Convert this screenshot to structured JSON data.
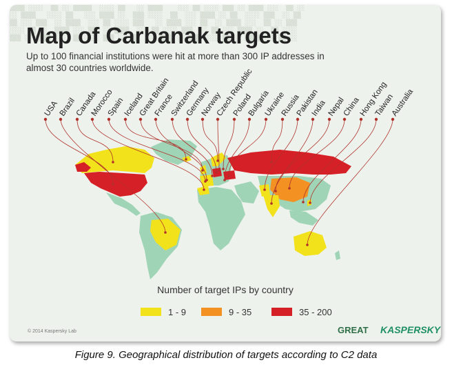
{
  "title": "Map of Carbanak targets",
  "subtitle": "Up to 100 financial institutions were hit at more than 300 IP addresses in almost 30 countries worldwide.",
  "countries": [
    {
      "name": "USA",
      "tier": "35 - 200"
    },
    {
      "name": "Brazil",
      "tier": "1 - 9"
    },
    {
      "name": "Canada",
      "tier": "1 - 9"
    },
    {
      "name": "Morocco",
      "tier": "1 - 9"
    },
    {
      "name": "Spain",
      "tier": "1 - 9"
    },
    {
      "name": "Iceland",
      "tier": "1 - 9"
    },
    {
      "name": "Great Britain",
      "tier": "1 - 9"
    },
    {
      "name": "France",
      "tier": "1 - 9"
    },
    {
      "name": "Switzerland",
      "tier": "1 - 9"
    },
    {
      "name": "Germany",
      "tier": "35 - 200"
    },
    {
      "name": "Norway",
      "tier": "1 - 9"
    },
    {
      "name": "Czech Republic",
      "tier": "1 - 9"
    },
    {
      "name": "Poland",
      "tier": "1 - 9"
    },
    {
      "name": "Bulgaria",
      "tier": "1 - 9"
    },
    {
      "name": "Ukraine",
      "tier": "35 - 200"
    },
    {
      "name": "Russia",
      "tier": "35 - 200"
    },
    {
      "name": "Pakistan",
      "tier": "1 - 9"
    },
    {
      "name": "India",
      "tier": "1 - 9"
    },
    {
      "name": "Nepal",
      "tier": "1 - 9"
    },
    {
      "name": "China",
      "tier": "9 - 35"
    },
    {
      "name": "Hong Kong",
      "tier": "1 - 9"
    },
    {
      "name": "Taiwan",
      "tier": "1 - 9"
    },
    {
      "name": "Australia",
      "tier": "1 - 9"
    }
  ],
  "legend": {
    "title": "Number of target IPs by country",
    "items": [
      {
        "label": "1 - 9",
        "color": "#f2e21c"
      },
      {
        "label": "9 - 35",
        "color": "#f39222"
      },
      {
        "label": "35 - 200",
        "color": "#d62027"
      }
    ]
  },
  "colors": {
    "land": "#9fd4b6",
    "leader": "#b0302b"
  },
  "copyright": "© 2014 Kaspersky Lab",
  "logos": {
    "great": "GREAT",
    "kaspersky": "KASPERSKY"
  },
  "caption": "Figure 9. Geographical distribution of targets according to C2 data"
}
